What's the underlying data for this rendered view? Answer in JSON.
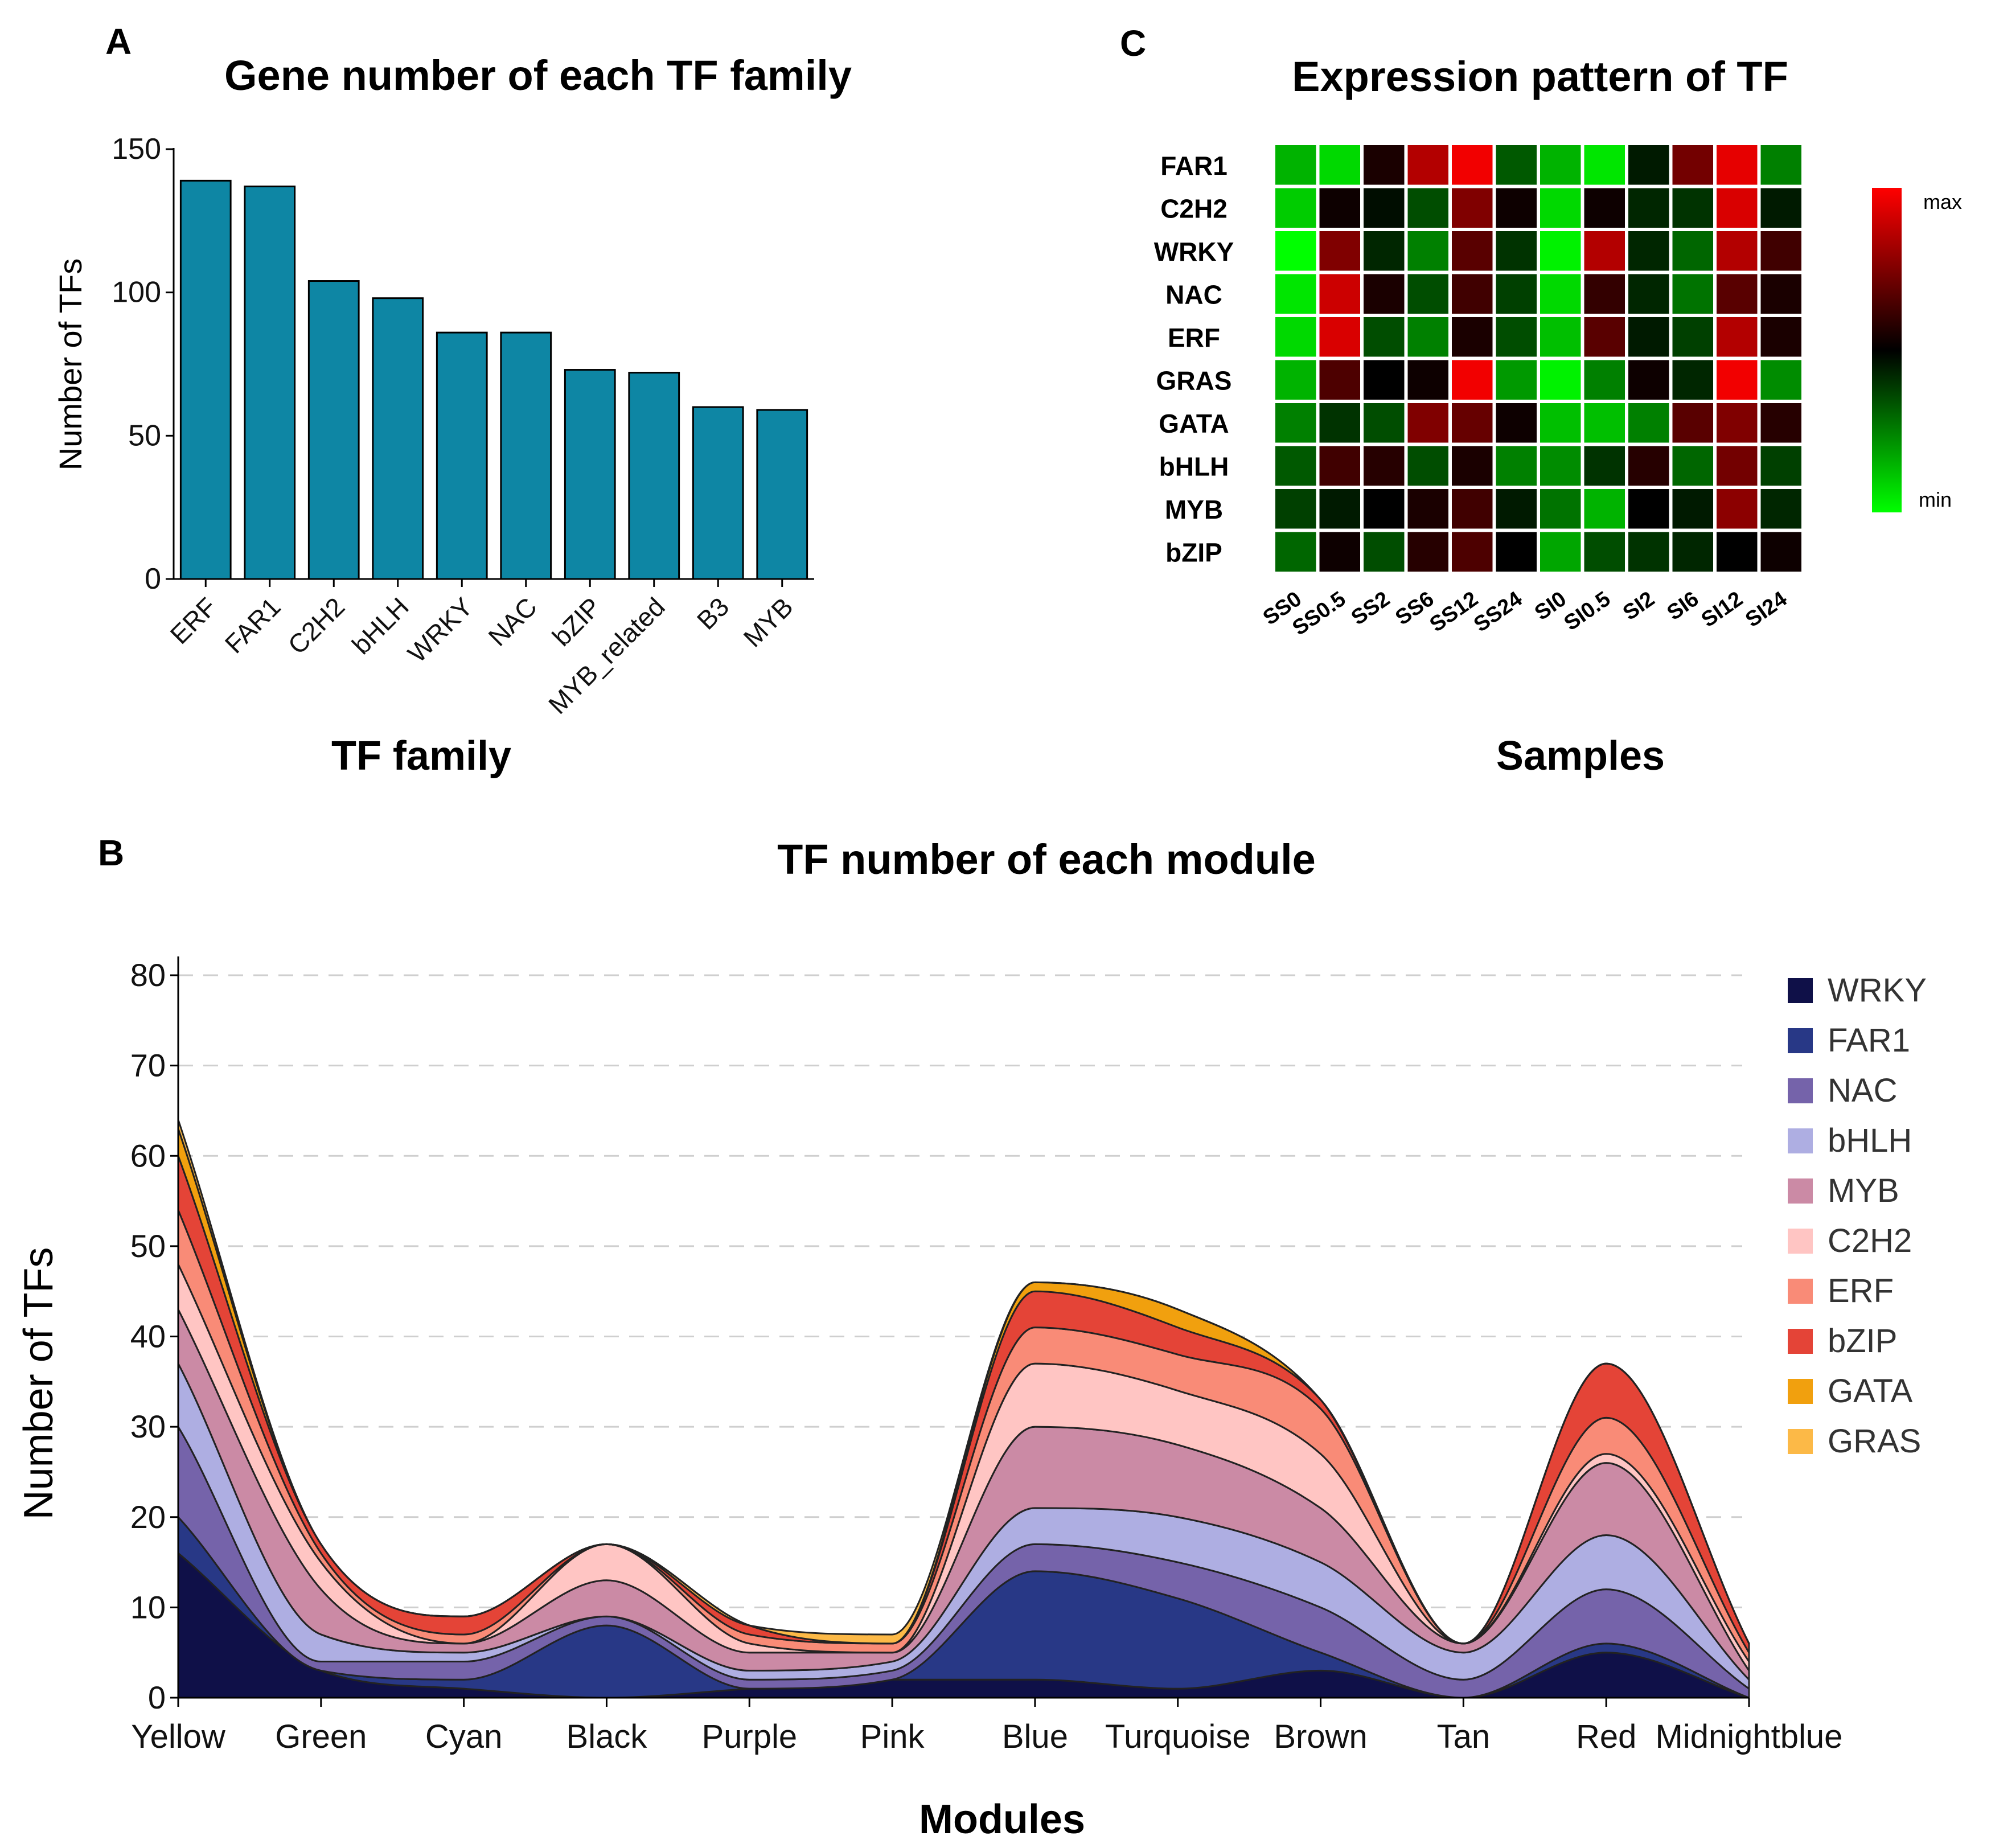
{
  "chart_data": [
    {
      "panel": "A",
      "type": "bar",
      "title": "Gene number of each TF family",
      "xlabel": "TF family",
      "ylabel": "Number of TFs",
      "ylim": [
        0,
        150
      ],
      "yticks": [
        0,
        50,
        100,
        150
      ],
      "categories": [
        "ERF",
        "FAR1",
        "C2H2",
        "bHLH",
        "WRKY",
        "NAC",
        "bZIP",
        "MYB_related",
        "B3",
        "MYB"
      ],
      "values": [
        139,
        137,
        104,
        98,
        86,
        86,
        73,
        72,
        60,
        59
      ],
      "color": "#0e86a4"
    },
    {
      "panel": "C",
      "type": "heatmap",
      "title": "Expression pattern of TF",
      "xlabel": "Samples",
      "rows": [
        "FAR1",
        "C2H2",
        "WRKY",
        "NAC",
        "ERF",
        "GRAS",
        "GATA",
        "bHLH",
        "MYB",
        "bZIP"
      ],
      "columns": [
        "SS0",
        "SS0.5",
        "SS2",
        "SS6",
        "SS12",
        "SS24",
        "SI0",
        "SI0.5",
        "SI2",
        "SI6",
        "SI12",
        "SI24"
      ],
      "values": [
        [
          -0.7,
          -0.85,
          0.1,
          0.7,
          0.95,
          -0.35,
          -0.7,
          -0.9,
          -0.1,
          0.45,
          0.9,
          -0.5
        ],
        [
          -0.8,
          0.05,
          -0.05,
          -0.3,
          0.5,
          0.05,
          -0.85,
          0.05,
          -0.15,
          -0.2,
          0.85,
          -0.1
        ],
        [
          -1.0,
          0.5,
          -0.15,
          -0.5,
          0.35,
          -0.2,
          -0.95,
          0.7,
          -0.15,
          -0.4,
          0.7,
          0.25
        ],
        [
          -0.9,
          0.8,
          0.1,
          -0.3,
          0.25,
          -0.25,
          -0.85,
          0.2,
          -0.15,
          -0.45,
          0.35,
          0.1
        ],
        [
          -0.85,
          0.85,
          -0.3,
          -0.5,
          0.1,
          -0.3,
          -0.75,
          0.35,
          -0.1,
          -0.25,
          0.7,
          0.1
        ],
        [
          -0.7,
          0.3,
          0.0,
          0.05,
          0.95,
          -0.6,
          -0.95,
          -0.5,
          0.05,
          -0.15,
          0.95,
          -0.55
        ],
        [
          -0.5,
          -0.2,
          -0.3,
          0.5,
          0.4,
          0.05,
          -0.75,
          -0.75,
          -0.5,
          0.35,
          0.5,
          0.15
        ],
        [
          -0.35,
          0.25,
          0.15,
          -0.3,
          0.1,
          -0.5,
          -0.55,
          -0.2,
          0.15,
          -0.4,
          0.45,
          -0.25
        ],
        [
          -0.25,
          -0.1,
          0.0,
          0.1,
          0.25,
          -0.1,
          -0.45,
          -0.7,
          0.0,
          -0.1,
          0.55,
          -0.15
        ],
        [
          -0.4,
          0.05,
          -0.3,
          0.15,
          0.3,
          0.0,
          -0.65,
          -0.3,
          -0.2,
          -0.15,
          0.0,
          0.05
        ]
      ],
      "colorbar": {
        "max_label": "max",
        "min_label": "min",
        "low": "#00ff00",
        "mid": "#000000",
        "high": "#ff0000"
      }
    },
    {
      "panel": "B",
      "type": "area",
      "stacked": true,
      "title": "TF number of each module",
      "xlabel": "Modules",
      "ylabel": "Number of TFs",
      "ylim": [
        0,
        80
      ],
      "yticks": [
        0,
        10,
        20,
        30,
        40,
        50,
        60,
        70,
        80
      ],
      "grid": true,
      "legend_position": "right",
      "categories": [
        "Yellow",
        "Green",
        "Cyan",
        "Black",
        "Purple",
        "Pink",
        "Blue",
        "Turquoise",
        "Brown",
        "Tan",
        "Red",
        "Midnightblue"
      ],
      "series": [
        {
          "name": "WRKY",
          "color": "#0f1048",
          "values": [
            16,
            3,
            1,
            0,
            1,
            2,
            2,
            1,
            3,
            0,
            5,
            0
          ]
        },
        {
          "name": "FAR1",
          "color": "#283886",
          "values": [
            4,
            0,
            1,
            8,
            0,
            0,
            12,
            10,
            2,
            0,
            1,
            0
          ]
        },
        {
          "name": "NAC",
          "color": "#7563aa",
          "values": [
            10,
            1,
            2,
            1,
            1,
            1,
            3,
            4,
            5,
            2,
            6,
            1
          ]
        },
        {
          "name": "bHLH",
          "color": "#aeaee2",
          "values": [
            7,
            3,
            1,
            0,
            1,
            1,
            4,
            5,
            5,
            3,
            6,
            1
          ]
        },
        {
          "name": "MYB",
          "color": "#cb8aa5",
          "values": [
            6,
            5,
            1,
            4,
            2,
            1,
            9,
            8,
            6,
            1,
            8,
            1
          ]
        },
        {
          "name": "C2H2",
          "color": "#ffc5c3",
          "values": [
            5,
            3,
            0,
            4,
            1,
            0,
            7,
            6,
            6,
            0,
            1,
            1
          ]
        },
        {
          "name": "ERF",
          "color": "#f98b77",
          "values": [
            6,
            1,
            1,
            0,
            1,
            1,
            4,
            4,
            5,
            0,
            4,
            1
          ]
        },
        {
          "name": "bZIP",
          "color": "#e44437",
          "values": [
            6,
            1,
            2,
            0,
            1,
            0,
            4,
            3,
            1,
            0,
            6,
            1
          ]
        },
        {
          "name": "GATA",
          "color": "#f1a00e",
          "values": [
            3,
            0,
            0,
            0,
            0,
            0,
            1,
            2,
            0,
            0,
            0,
            0
          ]
        },
        {
          "name": "GRAS",
          "color": "#fcb947",
          "values": [
            1,
            0,
            0,
            0,
            0,
            1,
            0,
            0,
            0,
            0,
            0,
            0
          ]
        }
      ]
    }
  ],
  "panels": {
    "a": {
      "letter": "A"
    },
    "b": {
      "letter": "B"
    },
    "c": {
      "letter": "C"
    }
  }
}
